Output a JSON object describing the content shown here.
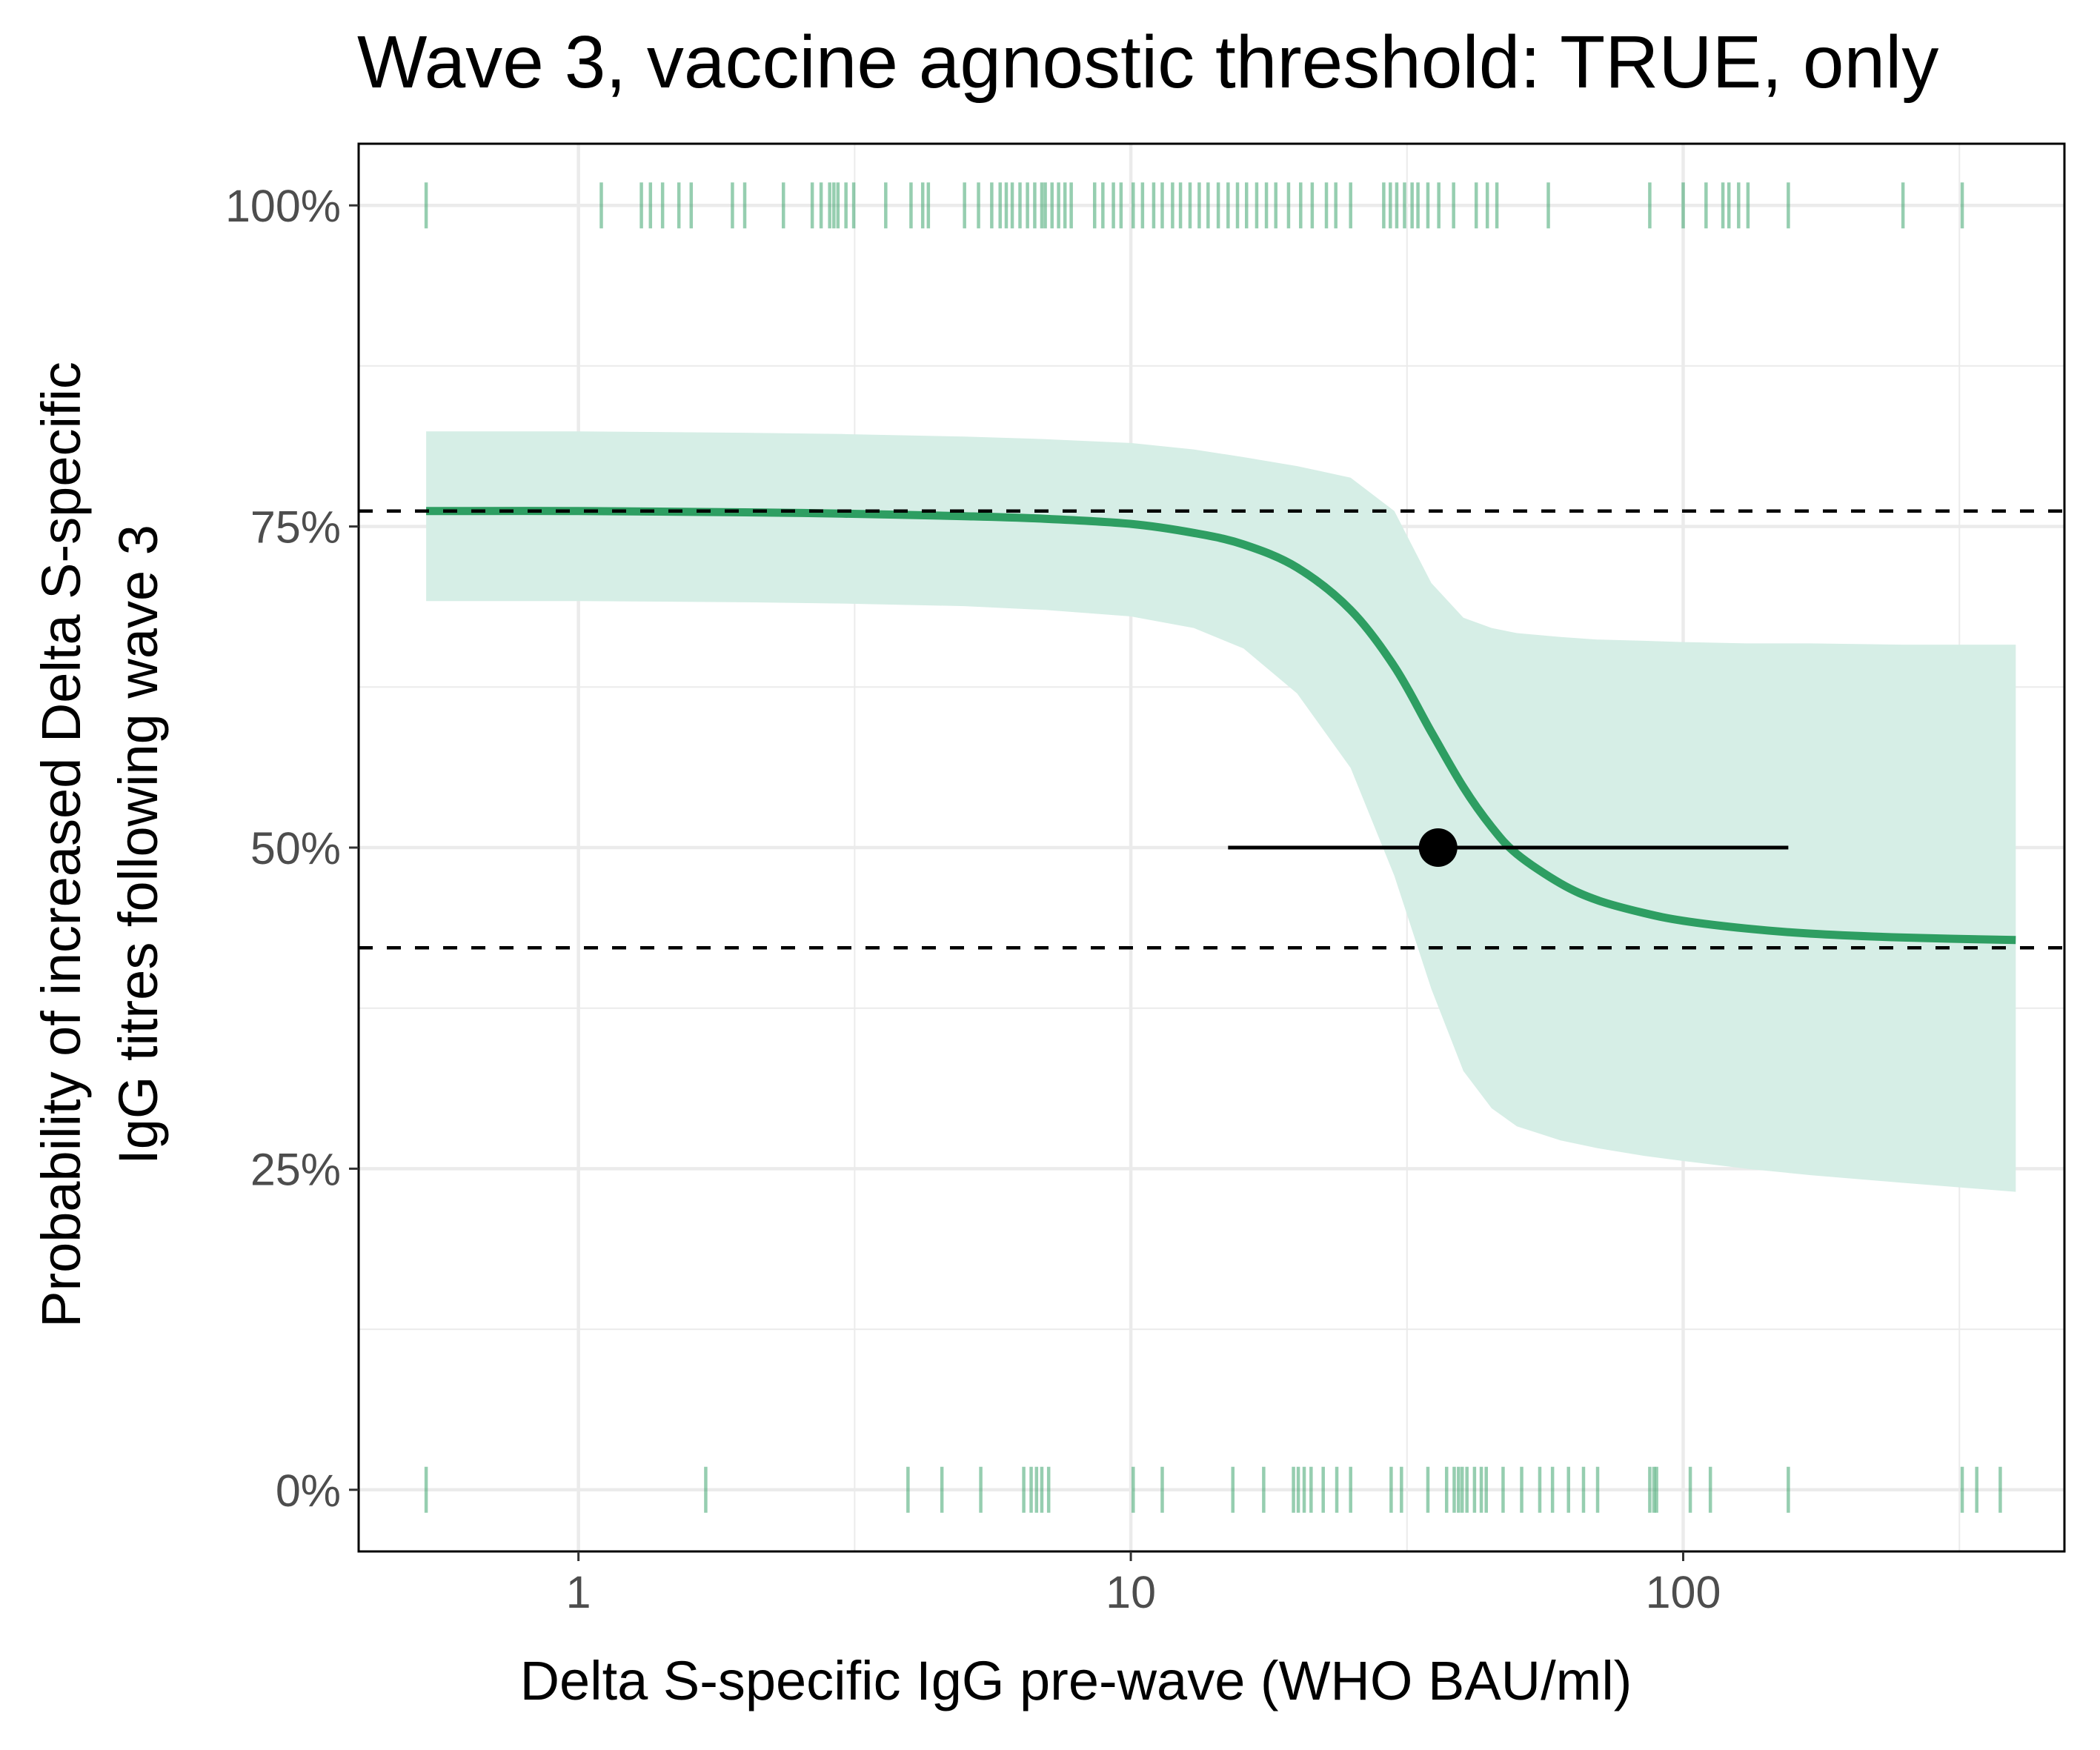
{
  "chart_data": {
    "type": "line",
    "title": "Wave 3, vaccine agnostic threshold: TRUE, only",
    "xlabel": "Delta S-specific IgG pre-wave (WHO BAU/ml)",
    "ylabel_lines": [
      "Probability of increased Delta S-specific",
      "IgG titres following wave 3"
    ],
    "x_scale": "log10",
    "xlim": [
      0.4,
      490
    ],
    "ylim": [
      -0.048,
      1.048
    ],
    "x_ticks": [
      {
        "value": 1,
        "label": "1"
      },
      {
        "value": 10,
        "label": "10"
      },
      {
        "value": 100,
        "label": "100"
      }
    ],
    "y_ticks": [
      {
        "value": 0,
        "label": "0%"
      },
      {
        "value": 0.25,
        "label": "25%"
      },
      {
        "value": 0.5,
        "label": "50%"
      },
      {
        "value": 0.75,
        "label": "75%"
      },
      {
        "value": 1,
        "label": "100%"
      }
    ],
    "grid": true,
    "colors": {
      "fit_line": "#2e9e62",
      "ribbon": "#d6eee6",
      "rug": "#2e9e62",
      "point": "#000000",
      "reference_lines": "#000000",
      "grid": "#ebebeb",
      "panel_border": "#000000"
    },
    "fit_curve": {
      "x": [
        0.53,
        1,
        2,
        3,
        5,
        7,
        10,
        13,
        16,
        20,
        25,
        30,
        35,
        40,
        45,
        50,
        60,
        70,
        85,
        100,
        130,
        170,
        250,
        400
      ],
      "y": [
        0.762,
        0.762,
        0.761,
        0.76,
        0.758,
        0.756,
        0.752,
        0.745,
        0.736,
        0.718,
        0.685,
        0.641,
        0.59,
        0.547,
        0.516,
        0.495,
        0.472,
        0.459,
        0.449,
        0.443,
        0.437,
        0.433,
        0.43,
        0.428
      ]
    },
    "confidence_band": {
      "x": [
        0.53,
        1,
        2,
        3,
        5,
        7,
        10,
        13,
        16,
        20,
        25,
        30,
        35,
        40,
        45,
        50,
        60,
        70,
        85,
        100,
        130,
        170,
        250,
        400
      ],
      "lower": [
        0.692,
        0.692,
        0.691,
        0.69,
        0.688,
        0.685,
        0.68,
        0.671,
        0.655,
        0.62,
        0.562,
        0.478,
        0.39,
        0.326,
        0.297,
        0.283,
        0.272,
        0.266,
        0.26,
        0.256,
        0.25,
        0.245,
        0.239,
        0.232
      ],
      "upper": [
        0.824,
        0.824,
        0.823,
        0.822,
        0.82,
        0.818,
        0.815,
        0.81,
        0.804,
        0.797,
        0.788,
        0.762,
        0.706,
        0.679,
        0.671,
        0.667,
        0.664,
        0.662,
        0.661,
        0.66,
        0.659,
        0.659,
        0.658,
        0.658
      ]
    },
    "reference_lines": [
      0.762,
      0.422
    ],
    "threshold_point": {
      "x": 36,
      "y": 0.5,
      "xmin": 15,
      "xmax": 155
    },
    "rug_y1": [
      0.53,
      1.1,
      1.3,
      1.35,
      1.42,
      1.52,
      1.6,
      1.9,
      2.0,
      2.35,
      2.65,
      2.75,
      2.85,
      2.9,
      2.95,
      3.05,
      3.15,
      3.6,
      4.0,
      4.2,
      4.3,
      5.0,
      5.3,
      5.6,
      5.8,
      5.95,
      6.1,
      6.3,
      6.5,
      6.7,
      6.9,
      7.0,
      7.2,
      7.4,
      7.6,
      7.8,
      8.6,
      8.9,
      9.3,
      9.6,
      10.1,
      10.5,
      11.0,
      11.4,
      11.9,
      12.3,
      12.8,
      13.3,
      13.8,
      14.4,
      15.0,
      15.6,
      16.2,
      16.9,
      17.6,
      18.3,
      19.3,
      20.3,
      21.3,
      22.6,
      23.5,
      25.0,
      28.7,
      29.5,
      30.3,
      31.3,
      32.3,
      33.1,
      34.5,
      36.1,
      38.4,
      42.2,
      44.2,
      46.0,
      57.0,
      87.0,
      100.0,
      110.0,
      118.0,
      121.0,
      126.0,
      131.0,
      155.0,
      250.0,
      320.0
    ],
    "rug_y0": [
      0.53,
      1.7,
      3.95,
      4.55,
      5.35,
      6.4,
      6.6,
      6.75,
      6.9,
      7.1,
      10.1,
      11.4,
      15.3,
      17.4,
      19.7,
      20.1,
      20.6,
      21.2,
      22.3,
      23.6,
      25.0,
      29.6,
      30.9,
      34.5,
      37.3,
      38.5,
      39.2,
      39.8,
      40.6,
      41.9,
      43.1,
      44.0,
      47.2,
      51.0,
      55.0,
      58.0,
      62.0,
      66.0,
      70.0,
      87.0,
      88.5,
      89.5,
      103.0,
      112.0,
      155.0,
      320.0,
      340.0,
      375.0
    ]
  }
}
